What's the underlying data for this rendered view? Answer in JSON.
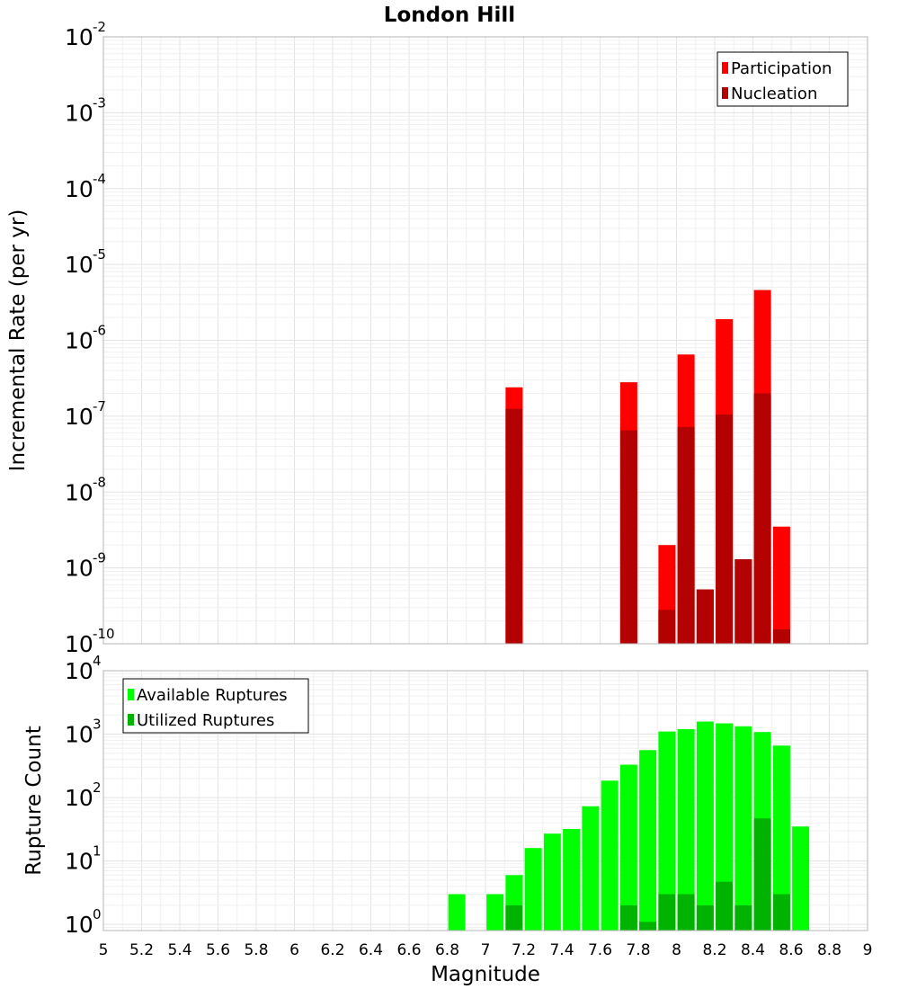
{
  "chart_data": [
    {
      "type": "bar",
      "title": "London Hill",
      "xlabel": "",
      "ylabel": "Incremental Rate (per yr)",
      "yscale": "log",
      "xlim": [
        5,
        9
      ],
      "ylim": [
        1e-10,
        0.01
      ],
      "grid": true,
      "legend_position": "top-right",
      "series": [
        {
          "name": "Participation",
          "color": "#ff0000",
          "x": [
            7.15,
            7.75,
            7.95,
            8.05,
            8.15,
            8.25,
            8.35,
            8.45,
            8.55
          ],
          "values": [
            2.4e-07,
            2.8e-07,
            2e-09,
            6.5e-07,
            5.2e-10,
            1.9e-06,
            1.3e-09,
            4.6e-06,
            3.5e-09
          ]
        },
        {
          "name": "Nucleation",
          "color": "#b30000",
          "x": [
            7.15,
            7.75,
            7.95,
            8.05,
            8.15,
            8.25,
            8.35,
            8.45,
            8.55
          ],
          "values": [
            1.25e-07,
            6.5e-08,
            2.8e-10,
            7.2e-08,
            5.2e-10,
            1.05e-07,
            1.3e-09,
            2e-07,
            1.55e-10
          ]
        }
      ]
    },
    {
      "type": "bar",
      "title": "",
      "xlabel": "Magnitude",
      "ylabel": "Rupture Count",
      "yscale": "log",
      "xlim": [
        5,
        9
      ],
      "ylim": [
        0.8,
        10000
      ],
      "grid": true,
      "legend_position": "top-left",
      "x_ticks": [
        "5",
        "5.2",
        "5.4",
        "5.6",
        "5.8",
        "6",
        "6.2",
        "6.4",
        "6.6",
        "6.8",
        "7",
        "7.2",
        "7.4",
        "7.6",
        "7.8",
        "8",
        "8.2",
        "8.4",
        "8.6",
        "8.8",
        "9"
      ],
      "series": [
        {
          "name": "Available Ruptures",
          "color": "#00ff00",
          "x": [
            6.85,
            7.05,
            7.15,
            7.25,
            7.35,
            7.45,
            7.55,
            7.65,
            7.75,
            7.85,
            7.95,
            8.05,
            8.15,
            8.25,
            8.35,
            8.45,
            8.55,
            8.65
          ],
          "values": [
            3,
            3,
            6,
            16,
            27,
            32,
            73,
            185,
            330,
            560,
            1100,
            1200,
            1580,
            1480,
            1330,
            1080,
            660,
            35
          ]
        },
        {
          "name": "Utilized Ruptures",
          "color": "#00b300",
          "x": [
            7.15,
            7.75,
            7.85,
            7.95,
            8.05,
            8.15,
            8.25,
            8.35,
            8.45,
            8.55
          ],
          "values": [
            2,
            2,
            1.1,
            3,
            3,
            2,
            4.7,
            2,
            47,
            3
          ]
        }
      ]
    }
  ]
}
